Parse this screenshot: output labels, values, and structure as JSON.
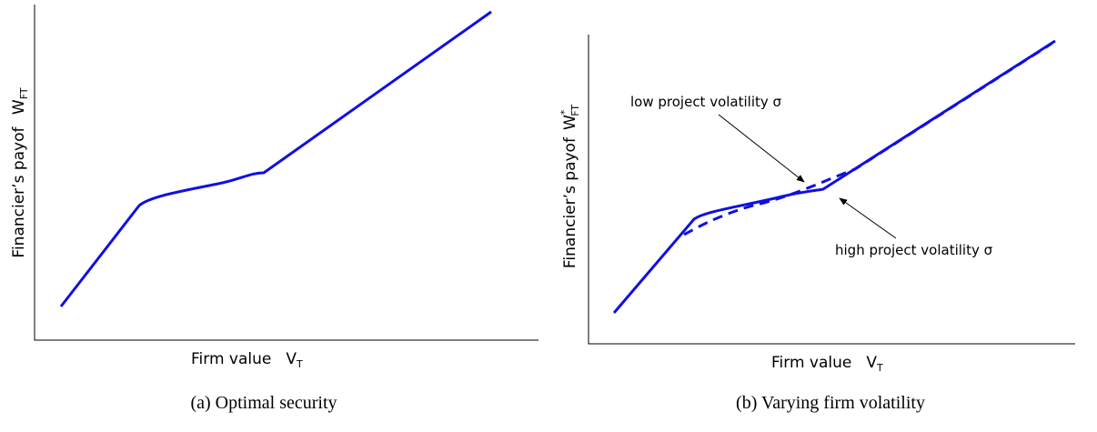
{
  "panels": [
    {
      "ylabel": {
        "text": "Financier’s payof",
        "var": "W",
        "sub": "FT"
      },
      "xlabel": {
        "text": "Firm value",
        "var": "V",
        "sub": "T"
      },
      "caption": "(a) Optimal security"
    },
    {
      "ylabel": {
        "text": "Financier’s payof",
        "var": "W",
        "sup": "*",
        "sub": "FT"
      },
      "xlabel": {
        "text": "Firm value",
        "var": "V",
        "sub": "T"
      },
      "annotations": [
        "low project volatility σ",
        "high project volatility σ"
      ],
      "caption": "(b) Varying firm volatility"
    }
  ]
}
